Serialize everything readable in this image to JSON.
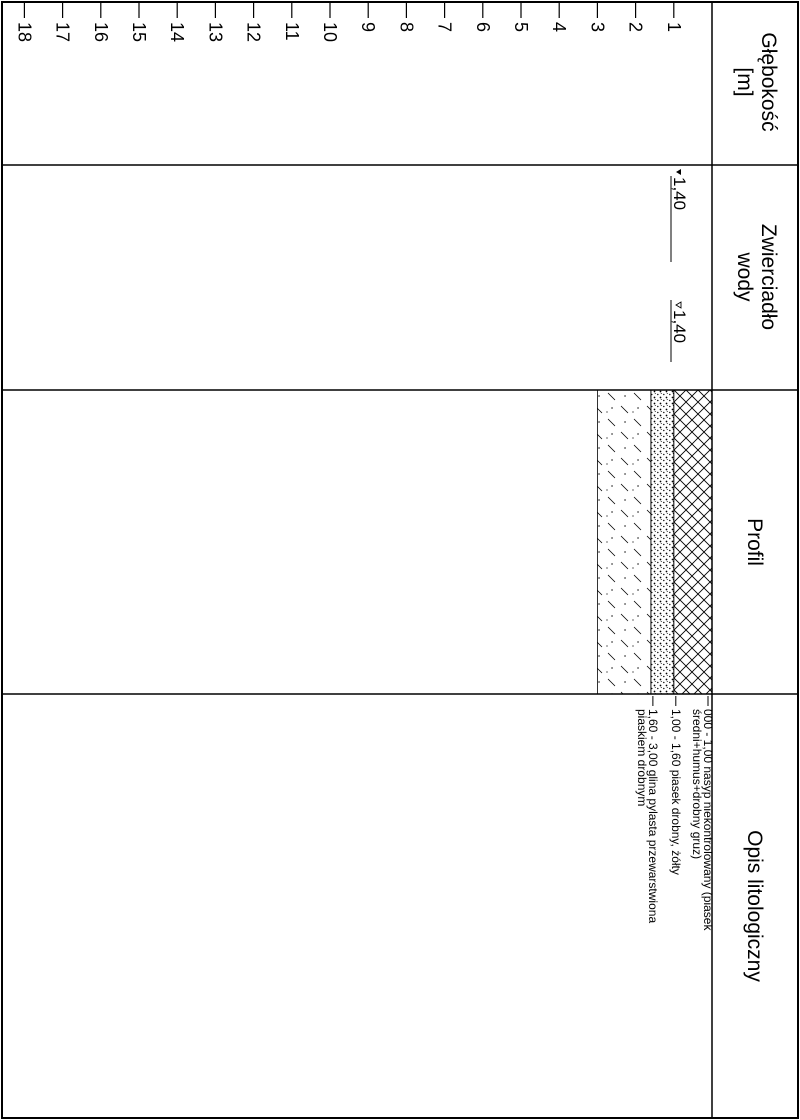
{
  "headers": {
    "depth": [
      "Głębokość",
      "[m]"
    ],
    "water": [
      "Zwierciadło",
      "wody"
    ],
    "profile": "Profil",
    "description": "Opis litologiczny"
  },
  "depth_scale": {
    "unit": "m",
    "ticks": [
      "1",
      "2",
      "3",
      "4",
      "5",
      "6",
      "7",
      "8",
      "9",
      "10",
      "11",
      "12",
      "13",
      "14",
      "15",
      "16",
      "17",
      "18"
    ]
  },
  "water_table": {
    "encountered": "1,40",
    "established": "1,40"
  },
  "layers": [
    {
      "top_m": 0.0,
      "bottom_m": 1.0,
      "pattern": "crosshatch",
      "lines": [
        "000 - 1,00 nasyp niekontrolowany (piasek",
        "średni+humus+drobny gruz)"
      ]
    },
    {
      "top_m": 1.0,
      "bottom_m": 1.6,
      "pattern": "dots",
      "lines": [
        "1,00 - 1,60 piasek drobny, żółty"
      ]
    },
    {
      "top_m": 1.6,
      "bottom_m": 3.0,
      "pattern": "dashes-dots",
      "lines": [
        "1,60 - 3,00 glina pylasta przewarstwiona",
        "piaskiem drobnym"
      ]
    }
  ]
}
